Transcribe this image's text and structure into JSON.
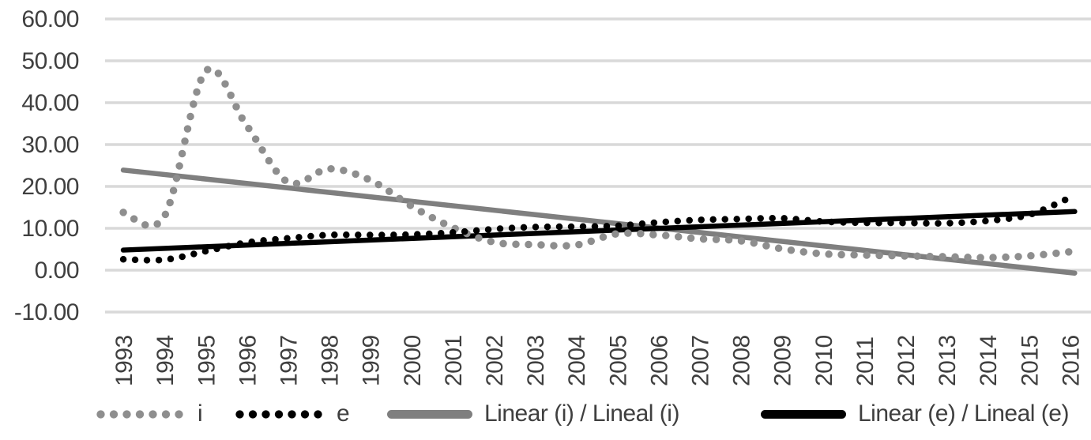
{
  "chart_data": {
    "type": "line",
    "title": "",
    "xlabel": "",
    "ylabel": "",
    "categories": [
      "1993",
      "1994",
      "1995",
      "1996",
      "1997",
      "1998",
      "1999",
      "2000",
      "2001",
      "2002",
      "2003",
      "2004",
      "2005",
      "2006",
      "2007",
      "2008",
      "2009",
      "2010",
      "2011",
      "2012",
      "2013",
      "2014",
      "2015",
      "2016"
    ],
    "y_axis": {
      "min": -10,
      "max": 60,
      "tick_step": 10,
      "tick_labels": [
        "60.00",
        "50.00",
        "40.00",
        "30.00",
        "20.00",
        "10.00",
        "0.00",
        "-10.00"
      ],
      "tick_values": [
        60,
        50,
        40,
        30,
        20,
        10,
        0,
        -10
      ]
    },
    "grid": "horizontal",
    "legend_position": "bottom",
    "series": [
      {
        "name": "i",
        "style": "dotted",
        "color": "#8e8e8e",
        "values": [
          13.8,
          12.9,
          47.5,
          34.5,
          21.0,
          24.2,
          21.5,
          15.3,
          10.2,
          6.7,
          6.1,
          6.0,
          8.7,
          8.4,
          7.5,
          7.0,
          5.1,
          3.9,
          3.6,
          3.4,
          3.2,
          3.0,
          3.4,
          4.4
        ]
      },
      {
        "name": "e",
        "style": "dotted",
        "color": "#000000",
        "values": [
          2.6,
          2.5,
          4.5,
          6.6,
          7.6,
          8.4,
          8.4,
          8.5,
          9.0,
          9.8,
          10.3,
          10.4,
          10.6,
          11.4,
          12.0,
          12.2,
          12.4,
          11.6,
          11.3,
          11.3,
          11.2,
          11.8,
          13.2,
          17.3
        ]
      },
      {
        "name": "Linear (i) / Lineal (i)",
        "style": "trend",
        "color": "#7f7f7f",
        "trend": {
          "start": 23.9,
          "end": -0.7
        }
      },
      {
        "name": "Linear (e) / Lineal (e)",
        "style": "trend",
        "color": "#000000",
        "trend": {
          "start": 4.8,
          "end": 14.0
        }
      }
    ],
    "colors": {
      "gridline": "#d9d9d9",
      "axis_text": "#3f3f3f",
      "background": "#ffffff"
    }
  }
}
